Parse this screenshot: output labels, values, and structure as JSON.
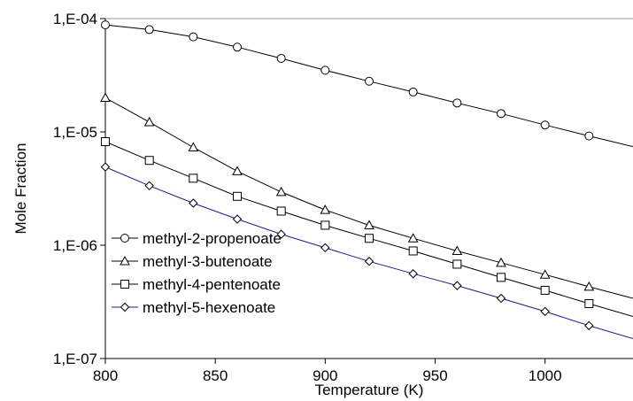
{
  "chart_data": {
    "type": "line",
    "xlabel": "Temperature (K)",
    "ylabel": "Mole Fraction",
    "xlim": [
      800,
      1040
    ],
    "ylim": [
      1e-07,
      0.0001
    ],
    "y_scale": "log",
    "grid": "top border line only",
    "legend_position": "lower-left",
    "x_ticks": [
      800,
      850,
      900,
      950,
      1000
    ],
    "x_tick_labels": [
      "800",
      "850",
      "900",
      "950",
      "1000"
    ],
    "y_ticks": [
      1e-07,
      1e-06,
      1e-05,
      0.0001
    ],
    "y_tick_labels": [
      "1,E-07",
      "1,E-06",
      "1,E-05",
      "1,E-04"
    ],
    "x": [
      800,
      820,
      840,
      860,
      880,
      900,
      920,
      940,
      960,
      980,
      1000,
      1020,
      1040
    ],
    "series": [
      {
        "name": "methyl-2-propenoate",
        "marker": "circle",
        "color": "#000000",
        "values": [
          8.8e-05,
          8e-05,
          6.9e-05,
          5.6e-05,
          4.45e-05,
          3.5e-05,
          2.8e-05,
          2.25e-05,
          1.8e-05,
          1.45e-05,
          1.15e-05,
          9.2e-06,
          7.4e-06
        ]
      },
      {
        "name": "methyl-3-butenoate",
        "marker": "triangle",
        "color": "#000000",
        "values": [
          2e-05,
          1.22e-05,
          7.3e-06,
          4.5e-06,
          2.95e-06,
          2.05e-06,
          1.5e-06,
          1.15e-06,
          8.9e-07,
          7e-07,
          5.5e-07,
          4.3e-07,
          3.4e-07
        ]
      },
      {
        "name": "methyl-4-pentenoate",
        "marker": "square",
        "color": "#000000",
        "values": [
          8.2e-06,
          5.6e-06,
          3.9e-06,
          2.7e-06,
          2e-06,
          1.5e-06,
          1.15e-06,
          8.9e-07,
          6.8e-07,
          5.2e-07,
          4e-07,
          3.05e-07,
          2.35e-07
        ]
      },
      {
        "name": "methyl-5-hexenoate",
        "marker": "diamond",
        "color": "#1a1a8c",
        "values": [
          4.9e-06,
          3.35e-06,
          2.35e-06,
          1.7e-06,
          1.25e-06,
          9.5e-07,
          7.2e-07,
          5.6e-07,
          4.4e-07,
          3.4e-07,
          2.6e-07,
          1.95e-07,
          1.5e-07
        ]
      }
    ]
  }
}
